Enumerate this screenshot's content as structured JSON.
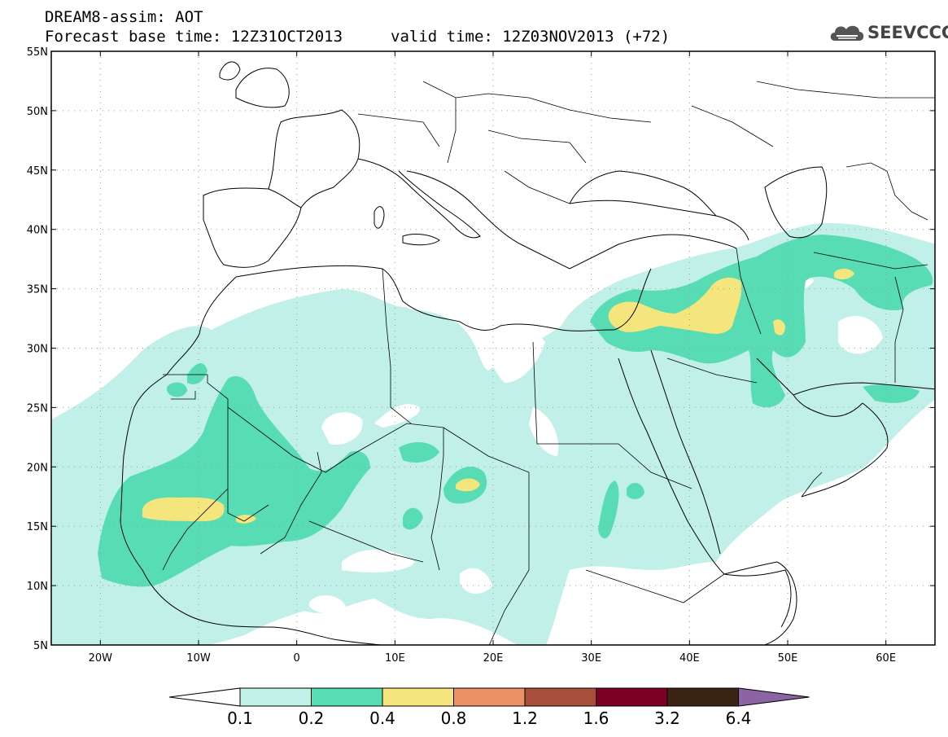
{
  "header": {
    "title_line1": "DREAM8-assim: AOT",
    "title_line2": "Forecast base time: 12Z31OCT2013",
    "valid_time": "valid time: 12Z03NOV2013 (+72)",
    "logo_text": "SEEVCCC",
    "logo_icon": "cloud-icon"
  },
  "map": {
    "lon_range": [
      -25,
      65
    ],
    "lat_range": [
      5,
      55
    ],
    "grid": true,
    "x_tick_labels": [
      {
        "lon": -20,
        "label": "20W"
      },
      {
        "lon": -10,
        "label": "10W"
      },
      {
        "lon": 0,
        "label": "0"
      },
      {
        "lon": 10,
        "label": "10E"
      },
      {
        "lon": 20,
        "label": "20E"
      },
      {
        "lon": 30,
        "label": "30E"
      },
      {
        "lon": 40,
        "label": "40E"
      },
      {
        "lon": 50,
        "label": "50E"
      },
      {
        "lon": 60,
        "label": "60E"
      }
    ],
    "y_tick_labels": [
      {
        "lat": 55,
        "label": "55N"
      },
      {
        "lat": 50,
        "label": "50N"
      },
      {
        "lat": 45,
        "label": "45N"
      },
      {
        "lat": 40,
        "label": "40N"
      },
      {
        "lat": 35,
        "label": "35N"
      },
      {
        "lat": 30,
        "label": "30N"
      },
      {
        "lat": 25,
        "label": "25N"
      },
      {
        "lat": 20,
        "label": "20N"
      },
      {
        "lat": 15,
        "label": "15N"
      },
      {
        "lat": 10,
        "label": "10N"
      },
      {
        "lat": 5,
        "label": "5N"
      }
    ]
  },
  "colorbar": {
    "levels": [
      "0.1",
      "0.2",
      "0.4",
      "0.8",
      "1.2",
      "1.6",
      "3.2",
      "6.4"
    ],
    "colors": [
      "#ffffff",
      "#c0f0e8",
      "#58dcb4",
      "#f4e67c",
      "#ec9068",
      "#a84e3c",
      "#7c0024",
      "#3c2414",
      "#8c64a4"
    ]
  },
  "fields": {
    "c1": "#c0f0e8",
    "c2": "#58dcb4",
    "c3": "#f4e67c"
  }
}
